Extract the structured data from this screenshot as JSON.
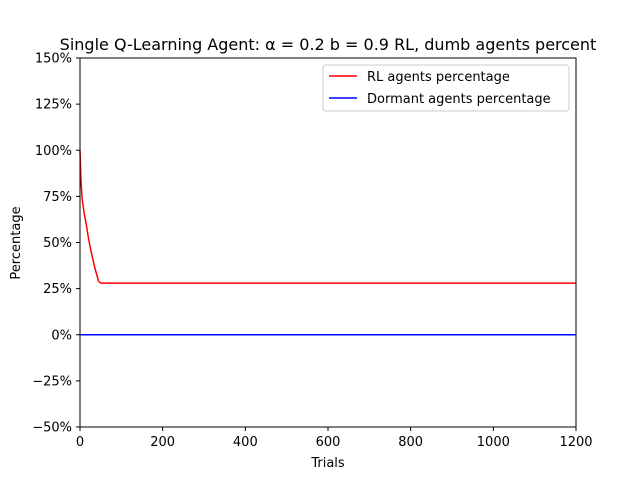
{
  "chart_data": {
    "type": "line",
    "title": "Single Q-Learning Agent: α = 0.2 b = 0.9 RL, dumb agents percent",
    "xlabel": "Trials",
    "ylabel": "Percentage",
    "xlim": [
      0,
      1200
    ],
    "ylim": [
      -50,
      150
    ],
    "xticks": [
      0,
      200,
      400,
      600,
      800,
      1000,
      1200
    ],
    "xtick_labels": [
      "0",
      "200",
      "400",
      "600",
      "800",
      "1000",
      "1200"
    ],
    "yticks": [
      -50,
      -25,
      0,
      25,
      50,
      75,
      100,
      125,
      150
    ],
    "ytick_labels": [
      "−50%",
      "−25%",
      "0%",
      "25%",
      "50%",
      "75%",
      "100%",
      "125%",
      "150%"
    ],
    "grid": false,
    "legend_position": "upper right",
    "series": [
      {
        "name": "RL agents percentage",
        "color": "#ff0000",
        "x": [
          0,
          2,
          5,
          10,
          15,
          20,
          25,
          30,
          35,
          40,
          45,
          50,
          53,
          60,
          100,
          200,
          400,
          600,
          800,
          1000,
          1200
        ],
        "y": [
          100,
          85,
          74,
          66,
          60,
          53,
          47,
          42,
          37,
          33,
          29,
          28,
          28,
          28,
          28,
          28,
          28,
          28,
          28,
          28,
          28
        ]
      },
      {
        "name": "Dormant agents percentage",
        "color": "#0000ff",
        "x": [
          0,
          1200
        ],
        "y": [
          0,
          0
        ]
      }
    ]
  }
}
